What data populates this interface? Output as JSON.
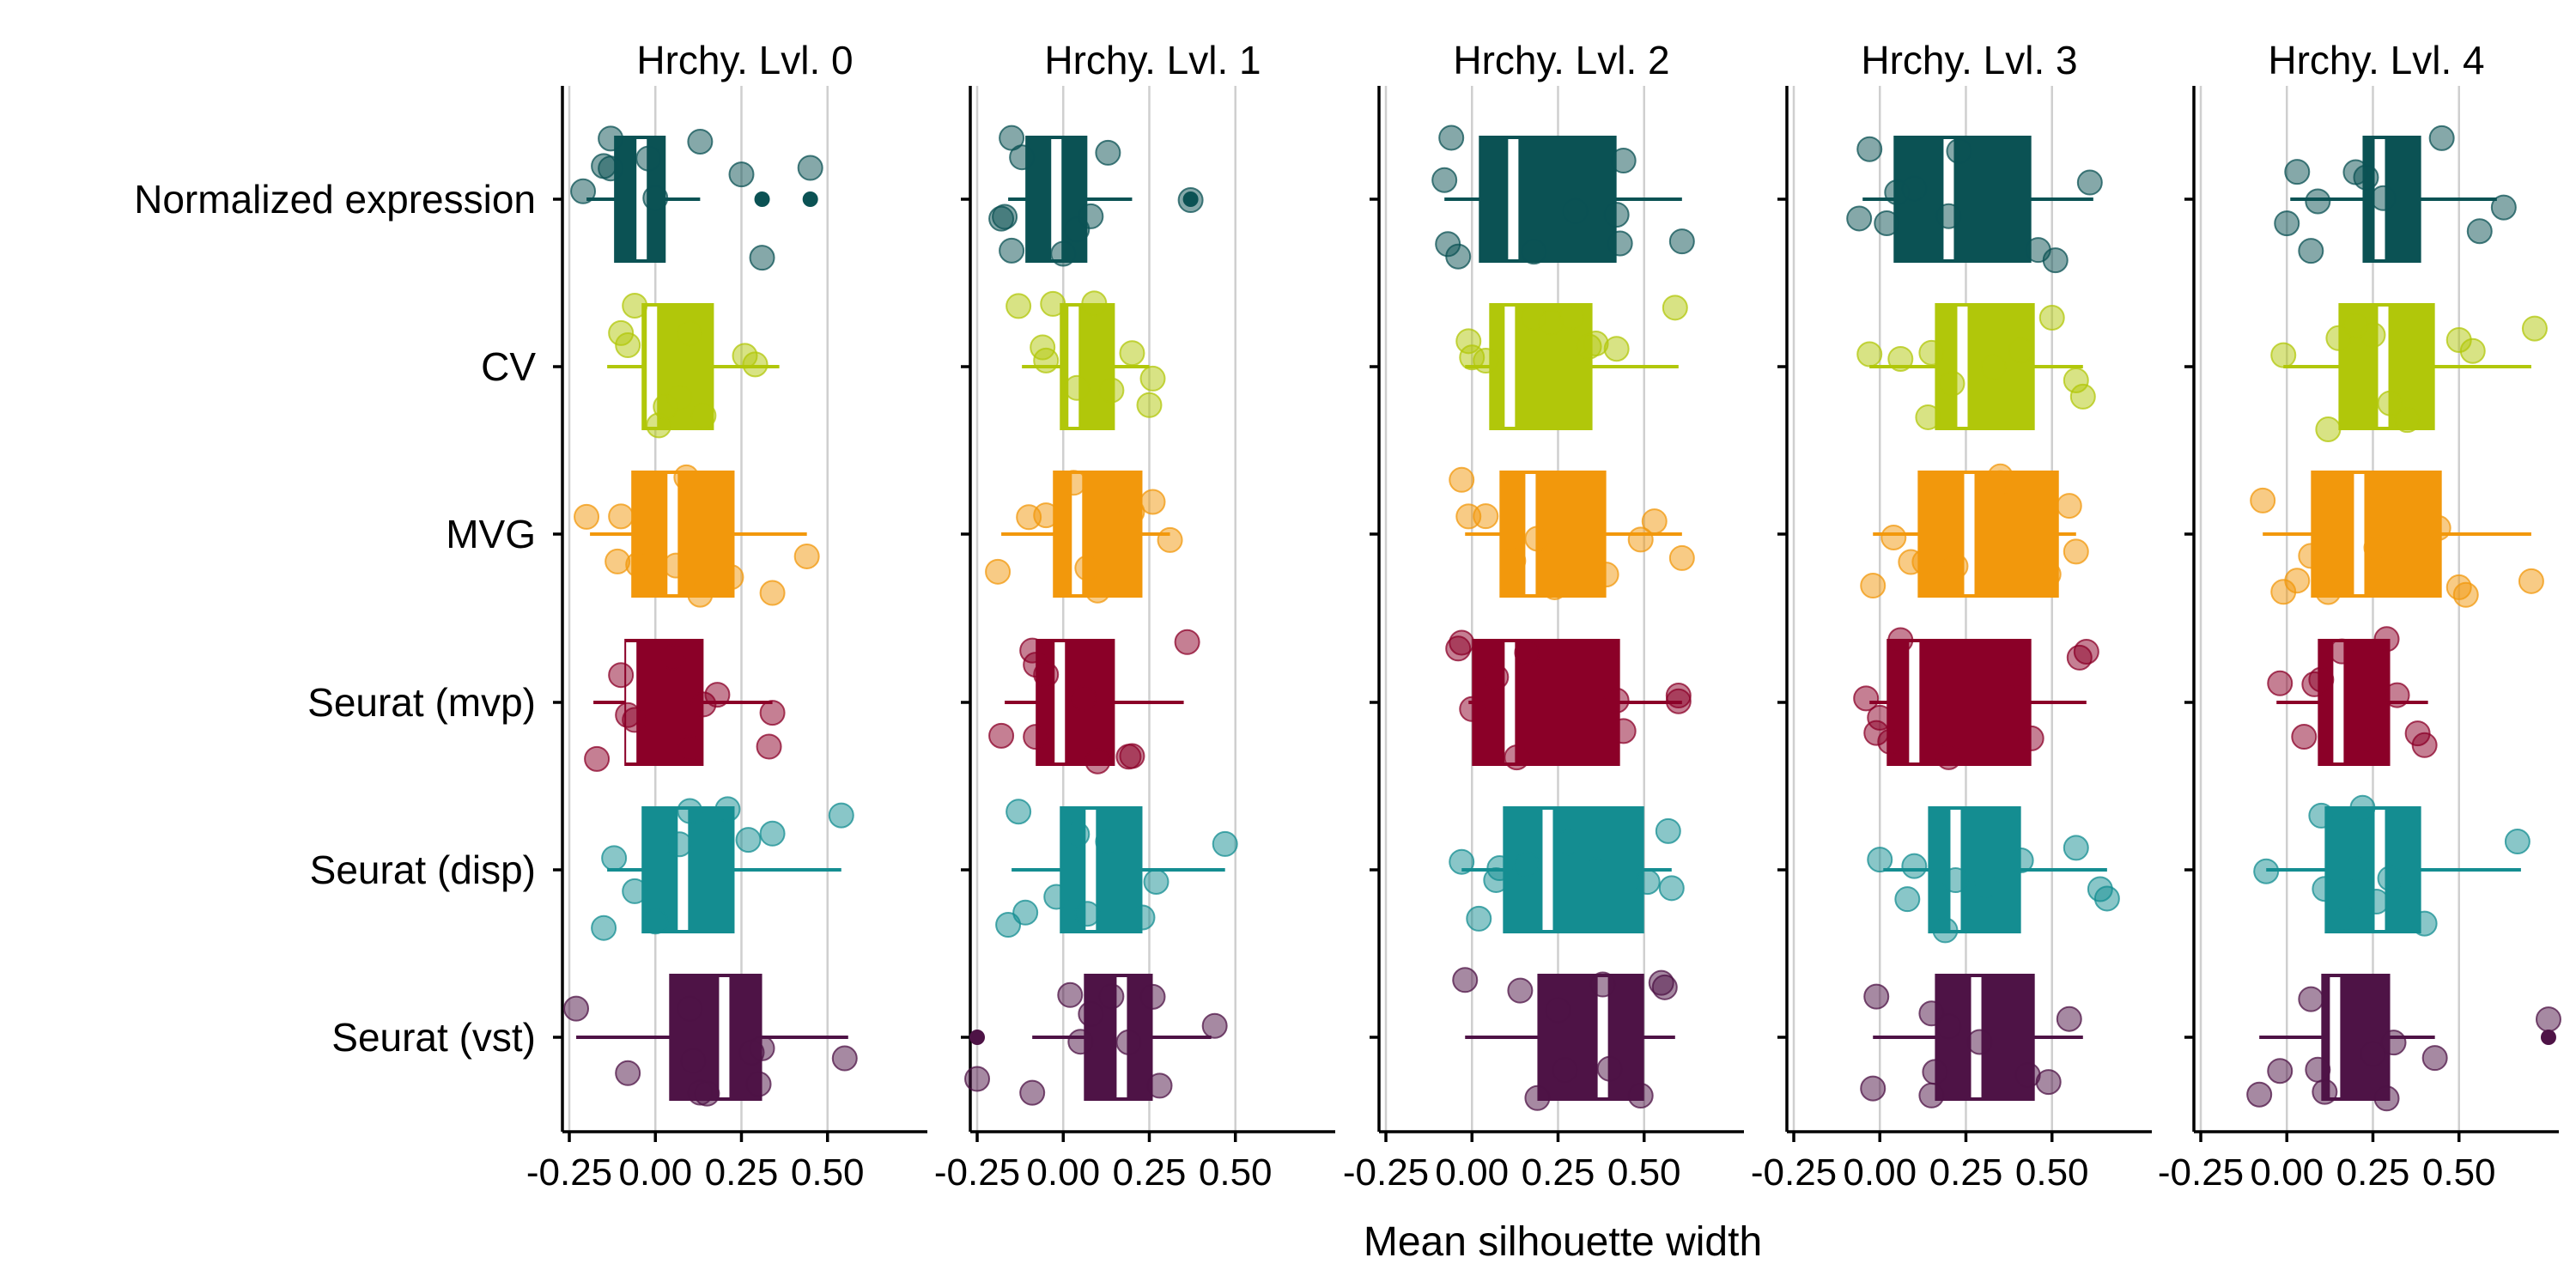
{
  "chart_data": {
    "type": "boxplot",
    "xlabel": "Mean silhouette width",
    "ylabel": "",
    "x_ticks": [
      "-0.25",
      "0.00",
      "0.25",
      "0.50"
    ],
    "x_tick_values": [
      -0.25,
      0.0,
      0.25,
      0.5
    ],
    "xlim": [
      -0.27,
      0.79
    ],
    "grid": "vertical",
    "legend": "none",
    "categories": [
      "Normalized expression",
      "CV",
      "MVG",
      "Seurat (mvp)",
      "Seurat (disp)",
      "Seurat (vst)"
    ],
    "colors": {
      "Normalized expression": "#0b5254",
      "CV": "#b1c70a",
      "MVG": "#f2980c",
      "Seurat (mvp)": "#8b0028",
      "Seurat (disp)": "#148d91",
      "Seurat (vst)": "#4e1346"
    },
    "median_color": "#ffffff",
    "panels": [
      {
        "title": "Hrchy. Lvl. 0",
        "boxes": [
          {
            "category": "Normalized expression",
            "whisker_low": -0.2,
            "q1": -0.12,
            "median": -0.04,
            "q3": 0.03,
            "whisker_high": 0.13,
            "outliers": [
              0.31,
              0.45
            ]
          },
          {
            "category": "CV",
            "whisker_low": -0.14,
            "q1": -0.04,
            "median": -0.01,
            "q3": 0.17,
            "whisker_high": 0.36,
            "outliers": []
          },
          {
            "category": "MVG",
            "whisker_low": -0.19,
            "q1": -0.07,
            "median": 0.05,
            "q3": 0.23,
            "whisker_high": 0.44,
            "outliers": []
          },
          {
            "category": "Seurat (mvp)",
            "whisker_low": -0.18,
            "q1": -0.09,
            "median": -0.07,
            "q3": 0.14,
            "whisker_high": 0.34,
            "outliers": []
          },
          {
            "category": "Seurat (disp)",
            "whisker_low": -0.14,
            "q1": -0.04,
            "median": 0.08,
            "q3": 0.23,
            "whisker_high": 0.54,
            "outliers": []
          },
          {
            "category": "Seurat (vst)",
            "whisker_low": -0.23,
            "q1": 0.04,
            "median": 0.2,
            "q3": 0.31,
            "whisker_high": 0.56,
            "outliers": []
          }
        ],
        "points": [
          [
            -0.21,
            0.0,
            -0.15,
            -0.13,
            -0.02,
            0.13,
            0.31,
            0.45,
            -0.13,
            0.25
          ],
          [
            -0.1,
            -0.08,
            -0.06,
            0.01,
            0.03,
            0.1,
            0.14,
            0.26,
            0.29,
            0.07
          ],
          [
            -0.2,
            -0.1,
            -0.11,
            -0.05,
            0.06,
            0.09,
            0.13,
            0.22,
            0.34,
            0.44
          ],
          [
            -0.17,
            -0.1,
            -0.08,
            -0.06,
            0.05,
            0.1,
            0.14,
            0.33,
            0.34,
            0.18
          ],
          [
            -0.15,
            -0.12,
            -0.06,
            0.0,
            0.07,
            0.21,
            0.27,
            0.34,
            0.54,
            0.1
          ],
          [
            -0.23,
            -0.08,
            0.1,
            0.11,
            0.13,
            0.15,
            0.28,
            0.3,
            0.31,
            0.55
          ]
        ]
      },
      {
        "title": "Hrchy. Lvl. 1",
        "boxes": [
          {
            "category": "Normalized expression",
            "whisker_low": -0.16,
            "q1": -0.11,
            "median": -0.02,
            "q3": 0.07,
            "whisker_high": 0.2,
            "outliers": [
              0.37
            ]
          },
          {
            "category": "CV",
            "whisker_low": -0.12,
            "q1": -0.01,
            "median": 0.03,
            "q3": 0.15,
            "whisker_high": 0.25,
            "outliers": []
          },
          {
            "category": "MVG",
            "whisker_low": -0.18,
            "q1": -0.03,
            "median": 0.04,
            "q3": 0.23,
            "whisker_high": 0.31,
            "outliers": []
          },
          {
            "category": "Seurat (mvp)",
            "whisker_low": -0.17,
            "q1": -0.08,
            "median": -0.01,
            "q3": 0.15,
            "whisker_high": 0.35,
            "outliers": []
          },
          {
            "category": "Seurat (disp)",
            "whisker_low": -0.15,
            "q1": -0.01,
            "median": 0.08,
            "q3": 0.23,
            "whisker_high": 0.47,
            "outliers": []
          },
          {
            "category": "Seurat (vst)",
            "whisker_low": -0.09,
            "q1": 0.06,
            "median": 0.17,
            "q3": 0.26,
            "whisker_high": 0.43,
            "outliers": [
              -0.25
            ]
          }
        ],
        "points": [
          [
            -0.17,
            -0.15,
            -0.18,
            -0.12,
            0.04,
            0.08,
            0.13,
            0.37,
            -0.15,
            0.0
          ],
          [
            -0.13,
            -0.06,
            -0.03,
            0.04,
            0.09,
            0.14,
            0.2,
            0.25,
            0.26,
            -0.05
          ],
          [
            -0.19,
            -0.1,
            -0.05,
            0.03,
            0.1,
            0.15,
            0.2,
            0.31,
            0.26,
            0.07
          ],
          [
            -0.18,
            -0.09,
            -0.08,
            -0.08,
            0.06,
            0.1,
            0.19,
            0.36,
            0.2,
            -0.05
          ],
          [
            -0.16,
            -0.13,
            -0.02,
            0.04,
            0.07,
            0.23,
            0.27,
            0.47,
            0.13,
            -0.11
          ],
          [
            -0.25,
            -0.09,
            0.02,
            0.08,
            0.14,
            0.19,
            0.26,
            0.28,
            0.44,
            0.05
          ]
        ]
      },
      {
        "title": "Hrchy. Lvl. 2",
        "boxes": [
          {
            "category": "Normalized expression",
            "whisker_low": -0.08,
            "q1": 0.02,
            "median": 0.12,
            "q3": 0.42,
            "whisker_high": 0.61,
            "outliers": []
          },
          {
            "category": "CV",
            "whisker_low": -0.02,
            "q1": 0.05,
            "median": 0.11,
            "q3": 0.35,
            "whisker_high": 0.6,
            "outliers": []
          },
          {
            "category": "MVG",
            "whisker_low": -0.02,
            "q1": 0.08,
            "median": 0.17,
            "q3": 0.39,
            "whisker_high": 0.61,
            "outliers": []
          },
          {
            "category": "Seurat (mvp)",
            "whisker_low": -0.01,
            "q1": 0.0,
            "median": 0.11,
            "q3": 0.43,
            "whisker_high": 0.61,
            "outliers": []
          },
          {
            "category": "Seurat (disp)",
            "whisker_low": -0.03,
            "q1": 0.09,
            "median": 0.22,
            "q3": 0.5,
            "whisker_high": 0.58,
            "outliers": []
          },
          {
            "category": "Seurat (vst)",
            "whisker_low": -0.02,
            "q1": 0.19,
            "median": 0.38,
            "q3": 0.5,
            "whisker_high": 0.59,
            "outliers": []
          }
        ],
        "points": [
          [
            -0.04,
            -0.07,
            -0.08,
            0.42,
            0.43,
            0.44,
            0.61,
            0.18,
            0.3,
            -0.06
          ],
          [
            -0.01,
            0.0,
            0.04,
            0.18,
            0.23,
            0.36,
            0.42,
            0.59,
            0.29,
            0.34
          ],
          [
            -0.01,
            -0.03,
            0.04,
            0.19,
            0.24,
            0.39,
            0.49,
            0.53,
            0.61,
            0.12
          ],
          [
            -0.04,
            -0.03,
            0.0,
            0.07,
            0.13,
            0.16,
            0.42,
            0.44,
            0.6,
            0.6
          ],
          [
            -0.03,
            0.02,
            0.08,
            0.07,
            0.36,
            0.51,
            0.57,
            0.58,
            0.28,
            0.16
          ],
          [
            -0.02,
            0.14,
            0.19,
            0.25,
            0.27,
            0.38,
            0.49,
            0.55,
            0.56,
            0.4
          ]
        ]
      },
      {
        "title": "Hrchy. Lvl. 3",
        "boxes": [
          {
            "category": "Normalized expression",
            "whisker_low": -0.05,
            "q1": 0.04,
            "median": 0.2,
            "q3": 0.44,
            "whisker_high": 0.62,
            "outliers": []
          },
          {
            "category": "CV",
            "whisker_low": -0.03,
            "q1": 0.16,
            "median": 0.24,
            "q3": 0.45,
            "whisker_high": 0.59,
            "outliers": []
          },
          {
            "category": "MVG",
            "whisker_low": -0.02,
            "q1": 0.11,
            "median": 0.26,
            "q3": 0.52,
            "whisker_high": 0.57,
            "outliers": []
          },
          {
            "category": "Seurat (mvp)",
            "whisker_low": -0.03,
            "q1": 0.02,
            "median": 0.1,
            "q3": 0.44,
            "whisker_high": 0.6,
            "outliers": []
          },
          {
            "category": "Seurat (disp)",
            "whisker_low": 0.01,
            "q1": 0.14,
            "median": 0.22,
            "q3": 0.41,
            "whisker_high": 0.66,
            "outliers": []
          },
          {
            "category": "Seurat (vst)",
            "whisker_low": -0.02,
            "q1": 0.16,
            "median": 0.28,
            "q3": 0.45,
            "whisker_high": 0.59,
            "outliers": []
          }
        ],
        "points": [
          [
            -0.06,
            -0.03,
            0.02,
            0.05,
            0.1,
            0.2,
            0.23,
            0.46,
            0.51,
            0.61
          ],
          [
            -0.03,
            0.06,
            0.14,
            0.21,
            0.33,
            0.41,
            0.5,
            0.57,
            0.59,
            0.15
          ],
          [
            -0.02,
            0.04,
            0.09,
            0.13,
            0.22,
            0.35,
            0.49,
            0.55,
            0.57,
            0.35
          ],
          [
            -0.04,
            -0.01,
            0.0,
            0.03,
            0.06,
            0.2,
            0.39,
            0.44,
            0.58,
            0.6
          ],
          [
            0.0,
            0.08,
            0.1,
            0.19,
            0.22,
            0.31,
            0.41,
            0.57,
            0.64,
            0.66
          ],
          [
            -0.02,
            -0.01,
            0.15,
            0.15,
            0.16,
            0.2,
            0.29,
            0.43,
            0.49,
            0.55
          ]
        ]
      },
      {
        "title": "Hrchy. Lvl. 4",
        "boxes": [
          {
            "category": "Normalized expression",
            "whisker_low": 0.01,
            "q1": 0.22,
            "median": 0.27,
            "q3": 0.39,
            "whisker_high": 0.61,
            "outliers": []
          },
          {
            "category": "CV",
            "whisker_low": -0.01,
            "q1": 0.15,
            "median": 0.28,
            "q3": 0.43,
            "whisker_high": 0.71,
            "outliers": []
          },
          {
            "category": "MVG",
            "whisker_low": -0.07,
            "q1": 0.07,
            "median": 0.21,
            "q3": 0.45,
            "whisker_high": 0.71,
            "outliers": []
          },
          {
            "category": "Seurat (mvp)",
            "whisker_low": -0.03,
            "q1": 0.09,
            "median": 0.15,
            "q3": 0.3,
            "whisker_high": 0.41,
            "outliers": []
          },
          {
            "category": "Seurat (disp)",
            "whisker_low": -0.06,
            "q1": 0.11,
            "median": 0.27,
            "q3": 0.39,
            "whisker_high": 0.68,
            "outliers": []
          },
          {
            "category": "Seurat (vst)",
            "whisker_low": -0.08,
            "q1": 0.1,
            "median": 0.14,
            "q3": 0.3,
            "whisker_high": 0.43,
            "outliers": [
              0.76
            ]
          }
        ],
        "points": [
          [
            0.0,
            0.03,
            0.09,
            0.2,
            0.28,
            0.45,
            0.56,
            0.63,
            0.23,
            0.07
          ],
          [
            -0.01,
            0.12,
            0.15,
            0.25,
            0.35,
            0.5,
            0.54,
            0.72,
            0.3,
            0.2
          ],
          [
            -0.01,
            -0.07,
            0.03,
            0.12,
            0.26,
            0.5,
            0.52,
            0.71,
            0.07,
            0.44
          ],
          [
            -0.02,
            0.05,
            0.1,
            0.22,
            0.29,
            0.38,
            0.4,
            0.16,
            0.08,
            0.32
          ],
          [
            -0.06,
            0.11,
            0.17,
            0.2,
            0.26,
            0.4,
            0.67,
            0.1,
            0.3,
            0.22
          ],
          [
            -0.08,
            -0.02,
            0.07,
            0.11,
            0.25,
            0.29,
            0.43,
            0.76,
            0.09,
            0.31
          ]
        ]
      }
    ]
  }
}
